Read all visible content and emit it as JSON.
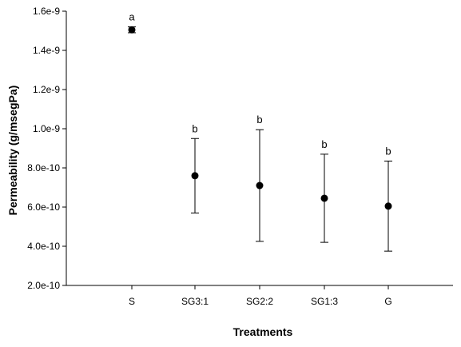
{
  "chart_data": {
    "type": "scatter",
    "title": "",
    "xlabel": "Treatments",
    "ylabel": "Permeability (g/msegPa)",
    "categories": [
      "S",
      "SG3:1",
      "SG2:2",
      "SG1:3",
      "G"
    ],
    "series": [
      {
        "values": [
          1.505e-09,
          7.6e-10,
          7.1e-10,
          6.45e-10,
          6.05e-10
        ],
        "error_low": [
          1.49e-09,
          5.7e-10,
          4.25e-10,
          4.2e-10,
          3.75e-10
        ],
        "error_high": [
          1.52e-09,
          9.5e-10,
          9.95e-10,
          8.7e-10,
          8.35e-10
        ],
        "significance": [
          "a",
          "b",
          "b",
          "b",
          "b"
        ]
      }
    ],
    "ylim": [
      2e-10,
      1.6e-09
    ],
    "yticks": [
      {
        "value": 2e-10,
        "label": "2.0e-10"
      },
      {
        "value": 4e-10,
        "label": "4.0e-10"
      },
      {
        "value": 6e-10,
        "label": "6.0e-10"
      },
      {
        "value": 8e-10,
        "label": "8.0e-10"
      },
      {
        "value": 1e-09,
        "label": "1.0e-9"
      },
      {
        "value": 1.2e-09,
        "label": "1.2e-9"
      },
      {
        "value": 1.4e-09,
        "label": "1.4e-9"
      },
      {
        "value": 1.6e-09,
        "label": "1.6e-9"
      }
    ],
    "grid": false,
    "legend": "none",
    "colors": {
      "marker": "#000000",
      "axis": "#000000",
      "errorbar": "#000000"
    }
  }
}
